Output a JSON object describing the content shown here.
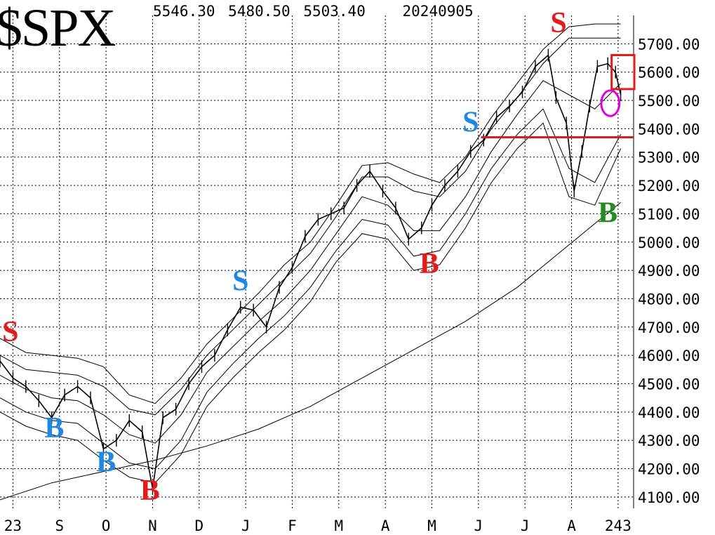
{
  "chart_data": {
    "type": "line",
    "title": "$SPX",
    "header_values": [
      "5546.30",
      "5480.50",
      "5503.40",
      "20240905"
    ],
    "ylim": [
      4060,
      5800
    ],
    "y_ticks": [
      {
        "value": 5700,
        "label": "5700.00"
      },
      {
        "value": 5600,
        "label": "5600.00"
      },
      {
        "value": 5500,
        "label": "5500.00"
      },
      {
        "value": 5400,
        "label": "5400.00"
      },
      {
        "value": 5300,
        "label": "5300.00"
      },
      {
        "value": 5200,
        "label": "5200.00"
      },
      {
        "value": 5100,
        "label": "5100.00"
      },
      {
        "value": 5000,
        "label": "5000.00"
      },
      {
        "value": 4900,
        "label": "4900.00"
      },
      {
        "value": 4800,
        "label": "4800.00"
      },
      {
        "value": 4700,
        "label": "4700.00"
      },
      {
        "value": 4600,
        "label": "4600.00"
      },
      {
        "value": 4500,
        "label": "4500.00"
      },
      {
        "value": 4400,
        "label": "4400.00"
      },
      {
        "value": 4300,
        "label": "4300.00"
      },
      {
        "value": 4200,
        "label": "4200.00"
      },
      {
        "value": 4100,
        "label": "4100.00"
      }
    ],
    "x_ticks": [
      {
        "x": 0.5,
        "label": "23"
      },
      {
        "x": 2.3,
        "label": "S"
      },
      {
        "x": 4.1,
        "label": "O"
      },
      {
        "x": 5.9,
        "label": "N"
      },
      {
        "x": 7.7,
        "label": "D"
      },
      {
        "x": 9.5,
        "label": "J"
      },
      {
        "x": 11.3,
        "label": "F"
      },
      {
        "x": 13.1,
        "label": "M"
      },
      {
        "x": 14.9,
        "label": "A"
      },
      {
        "x": 16.7,
        "label": "M"
      },
      {
        "x": 18.5,
        "label": "J"
      },
      {
        "x": 20.3,
        "label": "J"
      },
      {
        "x": 22.1,
        "label": "A"
      },
      {
        "x": 23.9,
        "label": "243"
      }
    ],
    "xlim": [
      0,
      24.5
    ],
    "grid": true,
    "series": [
      {
        "name": "price",
        "x": [
          0,
          0.5,
          1.0,
          1.5,
          2.0,
          2.5,
          3.0,
          3.5,
          4.0,
          4.5,
          5.0,
          5.5,
          5.9,
          6.3,
          6.8,
          7.3,
          7.8,
          8.3,
          8.8,
          9.3,
          9.8,
          10.3,
          10.8,
          11.3,
          11.8,
          12.3,
          12.8,
          13.3,
          13.8,
          14.3,
          14.8,
          15.3,
          15.8,
          16.3,
          16.7,
          17.2,
          17.7,
          18.2,
          18.7,
          19.2,
          19.7,
          20.2,
          20.7,
          21.2,
          21.5,
          21.9,
          22.2,
          22.5,
          22.8,
          23.1,
          23.5,
          23.8,
          24.0
        ],
        "y": [
          4580,
          4520,
          4490,
          4440,
          4380,
          4460,
          4490,
          4450,
          4270,
          4300,
          4370,
          4330,
          4130,
          4380,
          4410,
          4500,
          4560,
          4600,
          4690,
          4770,
          4760,
          4700,
          4840,
          4910,
          5020,
          5080,
          5100,
          5120,
          5200,
          5250,
          5180,
          5120,
          5010,
          5050,
          5130,
          5200,
          5250,
          5320,
          5360,
          5440,
          5480,
          5530,
          5620,
          5660,
          5510,
          5420,
          5180,
          5320,
          5480,
          5620,
          5630,
          5600,
          5520
        ]
      },
      {
        "name": "upper_outer",
        "x": [
          0,
          1,
          2,
          3,
          4,
          5,
          6,
          7,
          8,
          9,
          10,
          11,
          12,
          13,
          14,
          15,
          16,
          17,
          18,
          19,
          20,
          21,
          22,
          23,
          24
        ],
        "y": [
          4660,
          4610,
          4600,
          4590,
          4560,
          4460,
          4430,
          4520,
          4640,
          4730,
          4820,
          4920,
          5000,
          5130,
          5270,
          5280,
          5240,
          5210,
          5300,
          5440,
          5560,
          5680,
          5760,
          5770,
          5770
        ]
      },
      {
        "name": "upper_inner",
        "x": [
          0,
          1,
          2,
          3,
          4,
          5,
          6,
          7,
          8,
          9,
          10,
          11,
          12,
          13,
          14,
          15,
          16,
          17,
          18,
          19,
          20,
          21,
          22,
          23,
          24
        ],
        "y": [
          4600,
          4550,
          4540,
          4530,
          4490,
          4410,
          4390,
          4480,
          4600,
          4690,
          4780,
          4870,
          4960,
          5090,
          5230,
          5230,
          5180,
          5160,
          5250,
          5400,
          5510,
          5630,
          5720,
          5720,
          5720
        ]
      },
      {
        "name": "middle",
        "x": [
          0,
          1,
          2,
          3,
          4,
          5,
          6,
          7,
          8,
          9,
          10,
          11,
          12,
          13,
          14,
          15,
          16,
          17,
          18,
          19,
          20,
          21,
          22,
          23,
          24
        ],
        "y": [
          4530,
          4480,
          4450,
          4440,
          4390,
          4320,
          4290,
          4390,
          4540,
          4630,
          4720,
          4800,
          4900,
          5030,
          5160,
          5130,
          5040,
          5040,
          5160,
          5320,
          5450,
          5570,
          5520,
          5470,
          5560
        ]
      },
      {
        "name": "lower_inner",
        "x": [
          0,
          1,
          2,
          3,
          4,
          5,
          6,
          7,
          8,
          9,
          10,
          11,
          12,
          13,
          14,
          15,
          16,
          17,
          18,
          19,
          20,
          21,
          22,
          23,
          24
        ],
        "y": [
          4450,
          4400,
          4370,
          4360,
          4290,
          4220,
          4200,
          4300,
          4470,
          4570,
          4660,
          4740,
          4840,
          4970,
          5080,
          5060,
          4950,
          4970,
          5100,
          5260,
          5380,
          5470,
          5260,
          5210,
          5380
        ]
      },
      {
        "name": "lower_outer",
        "x": [
          0,
          1,
          2,
          3,
          4,
          5,
          6,
          7,
          8,
          9,
          10,
          11,
          12,
          13,
          14,
          15,
          16,
          17,
          18,
          19,
          20,
          21,
          22,
          23,
          24
        ],
        "y": [
          4400,
          4350,
          4320,
          4300,
          4230,
          4170,
          4150,
          4250,
          4420,
          4520,
          4610,
          4690,
          4790,
          4930,
          5030,
          5010,
          4900,
          4920,
          5050,
          5210,
          5330,
          5420,
          5160,
          5130,
          5330
        ]
      },
      {
        "name": "ma200",
        "x": [
          0,
          2,
          4,
          6,
          8,
          10,
          12,
          14,
          16,
          18,
          20,
          22,
          24
        ],
        "y": [
          4090,
          4150,
          4190,
          4230,
          4280,
          4340,
          4420,
          4520,
          4620,
          4720,
          4840,
          4990,
          5140
        ]
      }
    ],
    "resistance_line": {
      "y": 5370,
      "x": [
        18.6,
        24.5
      ]
    },
    "annotations": [
      {
        "text": "S",
        "x": 0.4,
        "y": 4650,
        "color": "#e31b1b"
      },
      {
        "text": "B",
        "x": 2.1,
        "y": 4310,
        "color": "#1e88e5"
      },
      {
        "text": "B",
        "x": 4.1,
        "y": 4190,
        "color": "#1e88e5"
      },
      {
        "text": "B",
        "x": 5.8,
        "y": 4090,
        "color": "#e31b1b"
      },
      {
        "text": "S",
        "x": 9.3,
        "y": 4830,
        "color": "#1e88e5"
      },
      {
        "text": "B",
        "x": 16.6,
        "y": 4890,
        "color": "#e31b1b"
      },
      {
        "text": "S",
        "x": 18.2,
        "y": 5390,
        "color": "#1e88e5"
      },
      {
        "text": "S",
        "x": 21.6,
        "y": 5740,
        "color": "#e31b1b"
      },
      {
        "text": "B",
        "x": 23.5,
        "y": 5070,
        "color": "#228b22"
      }
    ],
    "highlight_box": {
      "x": [
        23.65,
        24.85
      ],
      "y": [
        5540,
        5660
      ],
      "color": "#e31b1b"
    },
    "highlight_ellipse": {
      "cx": 23.6,
      "cy": 5490,
      "rx": 0.35,
      "ry": 45,
      "color": "#e000e0"
    },
    "colors": {
      "line": "#000000",
      "grid": "#000000",
      "resistance": "#d61e1e"
    }
  }
}
